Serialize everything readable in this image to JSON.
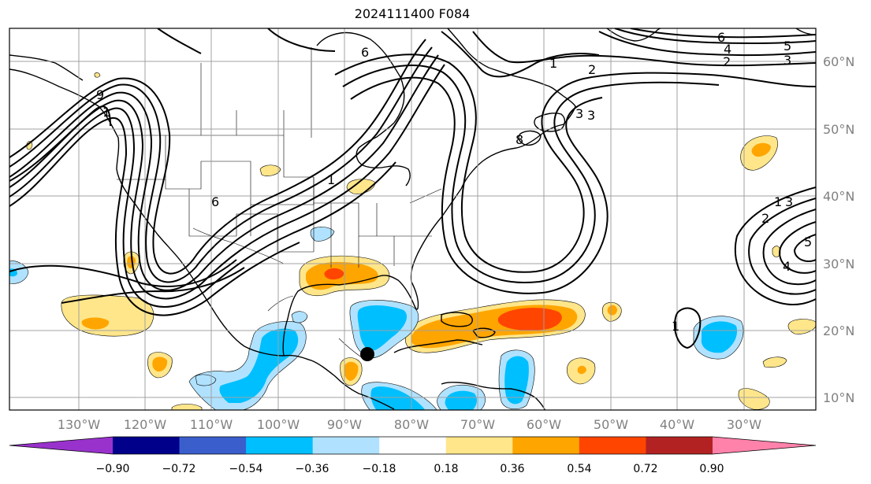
{
  "title": "2024111400 F084",
  "map": {
    "extent": {
      "lon_min": -138,
      "lon_max": -20,
      "lat_min": 8,
      "lat_max": 65
    },
    "lon_labels": [
      "130°W",
      "120°W",
      "110°W",
      "100°W",
      "90°W",
      "80°W",
      "70°W",
      "60°W",
      "50°W",
      "40°W",
      "30°W"
    ],
    "lat_labels": [
      "60°N",
      "50°N",
      "40°N",
      "30°N",
      "20°N",
      "10°N"
    ],
    "marker": {
      "lon": -86,
      "lat": 16.5,
      "color": "#000000"
    }
  },
  "contour_labels": [
    "6",
    "1",
    "2",
    "6",
    "4",
    "3",
    "5",
    "2",
    "3",
    "1",
    "6",
    "8",
    "9",
    "1",
    "3",
    "1",
    "2",
    "3",
    "5",
    "4",
    "1"
  ],
  "colorbar": {
    "ticks": [
      "−0.90",
      "−0.72",
      "−0.54",
      "−0.36",
      "−0.18",
      "0.18",
      "0.36",
      "0.54",
      "0.72",
      "0.90"
    ],
    "colors": [
      "#9932cc",
      "#00008b",
      "#3a5fcd",
      "#00bfff",
      "#b0e2ff",
      "#ffffff",
      "#ffe68a",
      "#ffa500",
      "#ff4500",
      "#b22222",
      "#ff82ab"
    ]
  },
  "colors": {
    "pos1": "#ffe68a",
    "pos2": "#ffa500",
    "pos3": "#ff4500",
    "neg1": "#b0e2ff",
    "neg2": "#00bfff",
    "grid": "#a0a0a0",
    "contour": "#000000"
  }
}
